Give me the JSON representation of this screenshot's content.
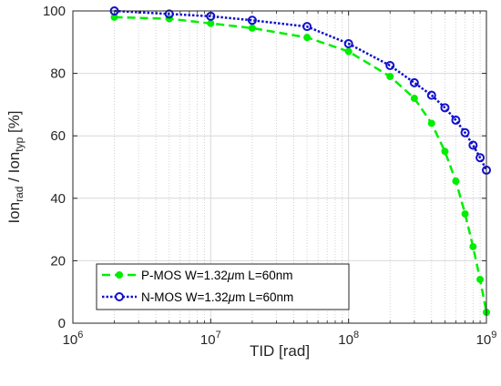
{
  "chart_data": {
    "type": "line",
    "xscale": "log",
    "xlim": [
      1000000,
      1000000000
    ],
    "ylim": [
      0,
      100
    ],
    "grid": true,
    "legend_position": "lower-left",
    "xlabel": "TID [rad]",
    "ylabel": {
      "part1": "Ion",
      "sub1": "rad",
      "part2": " / Ion",
      "sub2": "typ",
      "part3": " [%]"
    },
    "x_tick_labels": [
      {
        "base": "10",
        "exp": "6",
        "value": 1000000
      },
      {
        "base": "10",
        "exp": "7",
        "value": 10000000
      },
      {
        "base": "10",
        "exp": "8",
        "value": 100000000
      },
      {
        "base": "10",
        "exp": "9",
        "value": 1000000000
      }
    ],
    "y_tick_labels": [
      "0",
      "20",
      "40",
      "60",
      "80",
      "100"
    ],
    "y_ticks": [
      0,
      20,
      40,
      60,
      80,
      100
    ],
    "series": [
      {
        "name": {
          "pre": "P-MOS W=1.32",
          "mu": "μ",
          "post": "m L=60nm"
        },
        "color": "#00ee00",
        "line_style": "dashed",
        "marker": "filled-circle",
        "x": [
          2000000,
          5000000,
          10000000,
          20000000,
          50000000,
          100000000,
          200000000,
          300000000,
          400000000,
          500000000,
          600000000,
          700000000,
          800000000,
          900000000,
          1000000000
        ],
        "y": [
          98,
          97.5,
          96,
          94.5,
          91.5,
          87,
          79,
          72,
          64,
          55,
          45.5,
          35,
          24.5,
          14,
          3.5
        ]
      },
      {
        "name": {
          "pre": "N-MOS W=1.32",
          "mu": "μ",
          "post": "m L=60nm"
        },
        "color": "#1010cc",
        "line_style": "dotted",
        "marker": "open-circle",
        "x": [
          2000000,
          5000000,
          10000000,
          20000000,
          50000000,
          100000000,
          200000000,
          300000000,
          400000000,
          500000000,
          600000000,
          700000000,
          800000000,
          900000000,
          1000000000
        ],
        "y": [
          100,
          99,
          98.3,
          97,
          95,
          89.5,
          82.5,
          77,
          73,
          69,
          65,
          61,
          57,
          53,
          49
        ]
      }
    ]
  }
}
